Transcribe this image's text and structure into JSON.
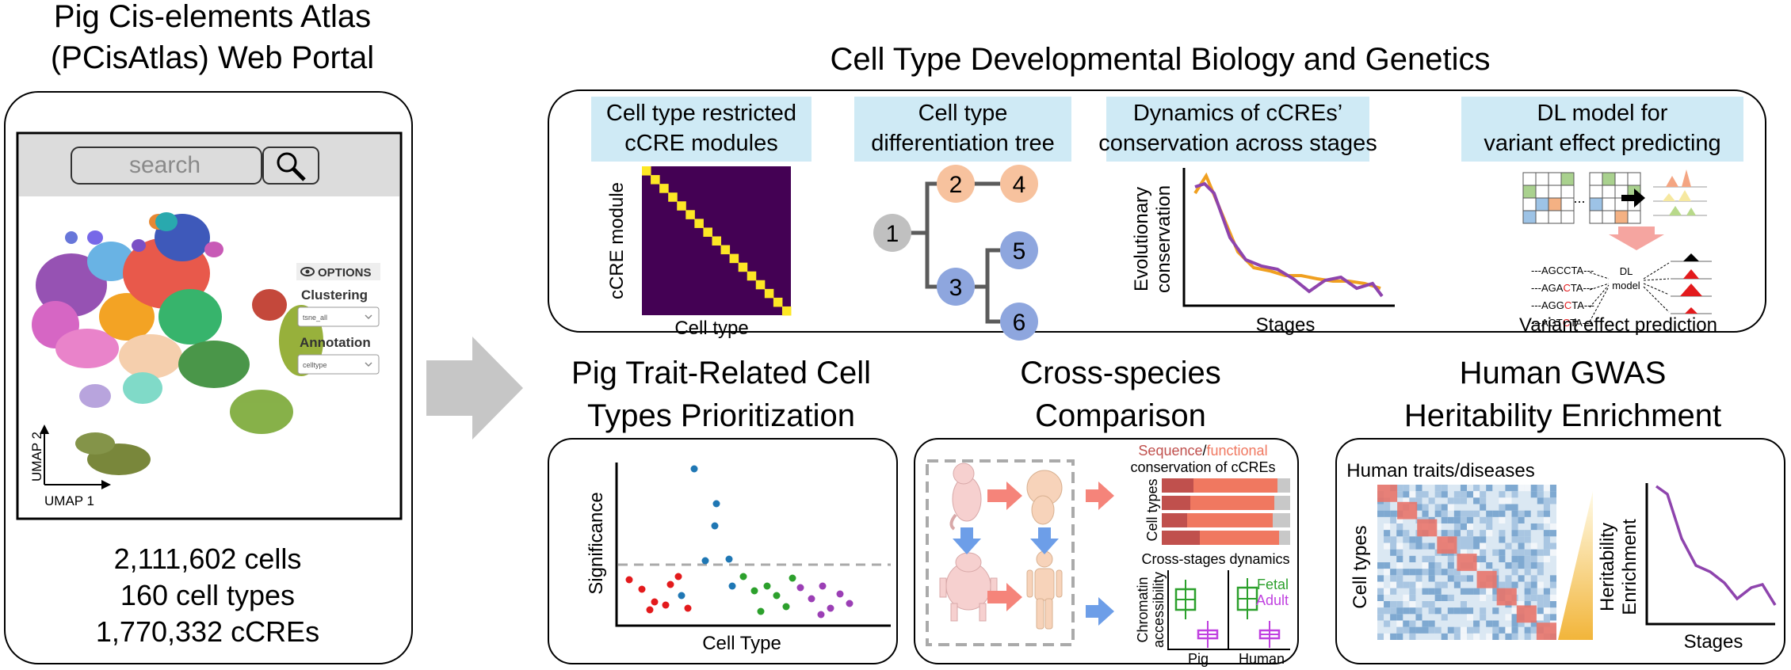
{
  "portal": {
    "title_line1": "Pig Cis-elements Atlas",
    "title_line2": "(PCisAtlas) Web Portal",
    "search_placeholder": "search",
    "options_label": "OPTIONS",
    "clustering_label": "Clustering",
    "clustering_value": "tsne_all",
    "annotation_label": "Annotation",
    "annotation_value": "celltype",
    "axis_x": "UMAP 1",
    "axis_y": "UMAP 2",
    "stats": [
      "2,111,602 cells",
      "160 cell types",
      "1,770,332 cCREs"
    ]
  },
  "dev_section": {
    "title": "Cell Type Developmental Biology and Genetics",
    "panel1": {
      "header_line1": "Cell type restricted",
      "header_line2": "cCRE modules",
      "ylabel": "cCRE module",
      "xlabel": "Cell type",
      "colors": {
        "background": "#440154",
        "diagonal": "#fde725"
      }
    },
    "panel2": {
      "header_line1": "Cell type",
      "header_line2": "differentiation tree",
      "nodes": [
        "1",
        "2",
        "3",
        "4",
        "5",
        "6"
      ],
      "colors": {
        "root": "#c0c0c0",
        "upper": "#f7c29e",
        "lower": "#8ea6de"
      }
    },
    "panel3": {
      "header_line1": "Dynamics of cCREs’",
      "header_line2": "conservation across stages",
      "ylabel_line1": "Evolutionary",
      "ylabel_line2": "conservation",
      "xlabel": "Stages"
    },
    "panel4": {
      "header_line1": "DL model for",
      "header_line2": "variant effect predicting",
      "sequences": [
        "---AGCCTA---",
        "---AGACTA---",
        "---AGGCTA---",
        "---AGTCTA---"
      ],
      "model_line1": "DL",
      "model_line2": "model",
      "ellipsis": "...",
      "caption": "Variant effect prediction"
    }
  },
  "trait_section": {
    "title_line1": "Pig Trait-Related Cell",
    "title_line2": "Types Prioritization",
    "ylabel": "Significance",
    "xlabel": "Cell Type"
  },
  "cross_section": {
    "title_line1": "Cross-species",
    "title_line2": "Comparison",
    "cons_title_seq": "Sequence",
    "cons_title_slash": "/",
    "cons_title_func": "functional",
    "cons_title_line2": "conservation of cCREs",
    "cons_ylabel": "Cell types",
    "dyn_title": "Cross-stages dynamics",
    "dyn_ylabel_line1": "Chromatin",
    "dyn_ylabel_line2": "accessibility",
    "legend_fetal": "Fetal",
    "legend_adult": "Adult",
    "x_pig": "Pig",
    "x_human": "Human",
    "colors": {
      "fetal": "#2ca02c",
      "adult": "#c040e0",
      "seq": "#c0504d",
      "func": "#f07860"
    }
  },
  "gwas_section": {
    "title_line1": "Human GWAS",
    "title_line2": "Heritability Enrichment",
    "heatmap_title": "Human traits/diseases",
    "heatmap_ylabel": "Cell types",
    "ylabel_line1": "Heritability",
    "ylabel_line2": "Enrichment",
    "xlabel": "Stages"
  }
}
